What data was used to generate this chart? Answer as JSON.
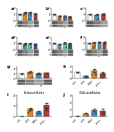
{
  "panels": [
    {
      "label": "a",
      "bars": [
        1.0,
        1.28,
        1.22,
        1.08
      ],
      "errors": [
        0.06,
        0.13,
        0.14,
        0.1
      ],
      "colors": [
        "#FFFFFF",
        "#E8841A",
        "#4A90C4",
        "#C0392B"
      ],
      "ylim": [
        0,
        2.0
      ],
      "yticks": [
        0,
        1,
        2
      ],
      "has_blot": true,
      "n_blot_rows": 2,
      "xlabel_ticks": [
        "ctrl",
        "LPS",
        "MSU",
        "LPS+"
      ]
    },
    {
      "label": "b",
      "bars": [
        1.0,
        0.72,
        0.68,
        0.6
      ],
      "errors": [
        0.05,
        0.1,
        0.09,
        0.08
      ],
      "colors": [
        "#FFFFFF",
        "#E8841A",
        "#4A90C4",
        "#C0392B"
      ],
      "ylim": [
        0,
        2.0
      ],
      "yticks": [
        0,
        1,
        2
      ],
      "has_blot": true,
      "n_blot_rows": 2,
      "xlabel_ticks": [
        "ctrl",
        "LPS",
        "MSU",
        "LPS+"
      ]
    },
    {
      "label": "c",
      "bars": [
        1.0,
        0.95,
        1.05
      ],
      "errors": [
        0.05,
        0.08,
        0.1
      ],
      "colors": [
        "#FFFFFF",
        "#4A90C4",
        "#C0392B"
      ],
      "ylim": [
        0,
        2.0
      ],
      "yticks": [
        0,
        1,
        2
      ],
      "has_blot": true,
      "n_blot_rows": 2,
      "xlabel_ticks": [
        "ctrl",
        "+",
        "++"
      ]
    },
    {
      "label": "d",
      "bars": [
        1.0,
        0.9,
        0.95,
        0.88
      ],
      "errors": [
        0.05,
        0.1,
        0.12,
        0.09
      ],
      "colors": [
        "#FFFFFF",
        "#4A90C4",
        "#5DC8B0",
        "#1A5FA8"
      ],
      "ylim": [
        0,
        2.0
      ],
      "yticks": [
        0,
        1,
        2
      ],
      "has_blot": true,
      "n_blot_rows": 2,
      "xlabel_ticks": [
        "ctrl",
        "+",
        "++",
        "+++"
      ]
    },
    {
      "label": "e",
      "bars": [
        1.0,
        0.85,
        1.0,
        0.92
      ],
      "errors": [
        0.05,
        0.1,
        0.1,
        0.1
      ],
      "colors": [
        "#FFFFFF",
        "#4A90C4",
        "#5DC8B0",
        "#1A5FA8"
      ],
      "ylim": [
        0,
        2.0
      ],
      "yticks": [
        0,
        1,
        2
      ],
      "has_blot": true,
      "n_blot_rows": 2,
      "xlabel_ticks": [
        "ctrl",
        "+",
        "++",
        "+++"
      ]
    },
    {
      "label": "f",
      "bars": [
        1.0,
        1.1,
        1.2,
        1.15
      ],
      "errors": [
        0.05,
        0.1,
        0.1,
        0.12
      ],
      "colors": [
        "#FFFFFF",
        "#E8841A",
        "#4A90C4",
        "#C0392B"
      ],
      "ylim": [
        0,
        2.0
      ],
      "yticks": [
        0,
        1,
        2
      ],
      "has_blot": true,
      "n_blot_rows": 2,
      "xlabel_ticks": [
        "ctrl",
        "LPS",
        "MSU",
        "LPS+"
      ]
    },
    {
      "label": "g",
      "bars": [
        1.0,
        1.32,
        1.02,
        1.12
      ],
      "errors": [
        0.05,
        0.13,
        0.1,
        0.11
      ],
      "colors": [
        "#FFFFFF",
        "#E8841A",
        "#4A90C4",
        "#C0392B"
      ],
      "ylim": [
        0,
        2.5
      ],
      "yticks": [
        0,
        1,
        2
      ],
      "has_blot": true,
      "n_blot_rows": 2,
      "xlabel_ticks": [
        "ctrl",
        "LPS",
        "MSU",
        "LPS+"
      ]
    },
    {
      "label": "h",
      "bars": [
        1.0,
        0.38,
        1.28,
        0.88
      ],
      "errors": [
        0.05,
        0.08,
        0.18,
        0.14
      ],
      "colors": [
        "#FFFFFF",
        "#4A90C4",
        "#E8841A",
        "#C0392B"
      ],
      "ylim": [
        0,
        2.0
      ],
      "yticks": [
        0,
        1,
        2
      ],
      "has_blot": false,
      "n_blot_rows": 0,
      "xlabel_ticks": [
        "ctrl",
        "LPS",
        "MSU",
        "LPS+"
      ]
    },
    {
      "label": "i",
      "title": "Intracellular",
      "bars": [
        0.05,
        1.45,
        0.88,
        2.1
      ],
      "errors": [
        0.02,
        0.22,
        0.14,
        0.48
      ],
      "colors": [
        "#FFFFFF",
        "#E8841A",
        "#4A90C4",
        "#C0392B"
      ],
      "ylim": [
        0,
        4.0
      ],
      "yticks": [
        0,
        2,
        4
      ],
      "has_blot": false,
      "n_blot_rows": 0,
      "xlabel_ticks": [
        "ctrl",
        "LPS",
        "MSU",
        "LPS+"
      ]
    },
    {
      "label": "j",
      "title": "Extracellular",
      "bars": [
        0.05,
        0.45,
        0.95,
        0.78
      ],
      "errors": [
        0.02,
        0.08,
        0.2,
        0.28
      ],
      "colors": [
        "#FFFFFF",
        "#E8841A",
        "#4A90C4",
        "#C0392B"
      ],
      "ylim": [
        0,
        3.0
      ],
      "yticks": [
        0,
        1,
        2,
        3
      ],
      "has_blot": false,
      "n_blot_rows": 0,
      "xlabel_ticks": [
        "ctrl",
        "LPS",
        "MSU",
        "LPS+"
      ]
    }
  ],
  "background": "#FFFFFF"
}
